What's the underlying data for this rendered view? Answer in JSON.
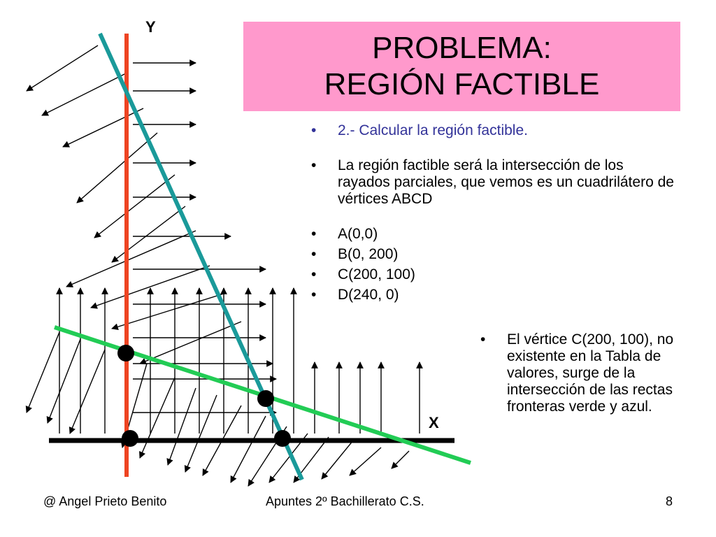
{
  "title": {
    "line1": "PROBLEMA:",
    "line2": "REGIÓN FACTIBLE"
  },
  "axes": {
    "y_label": "Y",
    "x_label": "X"
  },
  "bullets": {
    "step": "2.- Calcular la región factible.",
    "description": "La región factible será la intersección de los rayados parciales, que vemos es un cuadrilátero de vértices  ABCD",
    "vertices": [
      "A(0,0)",
      "B(0, 200)",
      "C(200, 100)",
      "D(240, 0)"
    ]
  },
  "note": "El vértice C(200, 100), no existente en la Tabla de valores, surge de la intersección de las rectas fronteras verde y azul.",
  "footer": {
    "author": "@  Angel Prieto Benito",
    "course": "Apuntes  2º  Bachillerato  C.S.",
    "page": "8"
  },
  "colors": {
    "title_background": "#ff99cc",
    "y_axis_line": "#ee4422",
    "blue_line": "#1a9a9a",
    "green_line": "#22cc55",
    "x_axis_line": "#000000",
    "step_text": "#333399"
  }
}
